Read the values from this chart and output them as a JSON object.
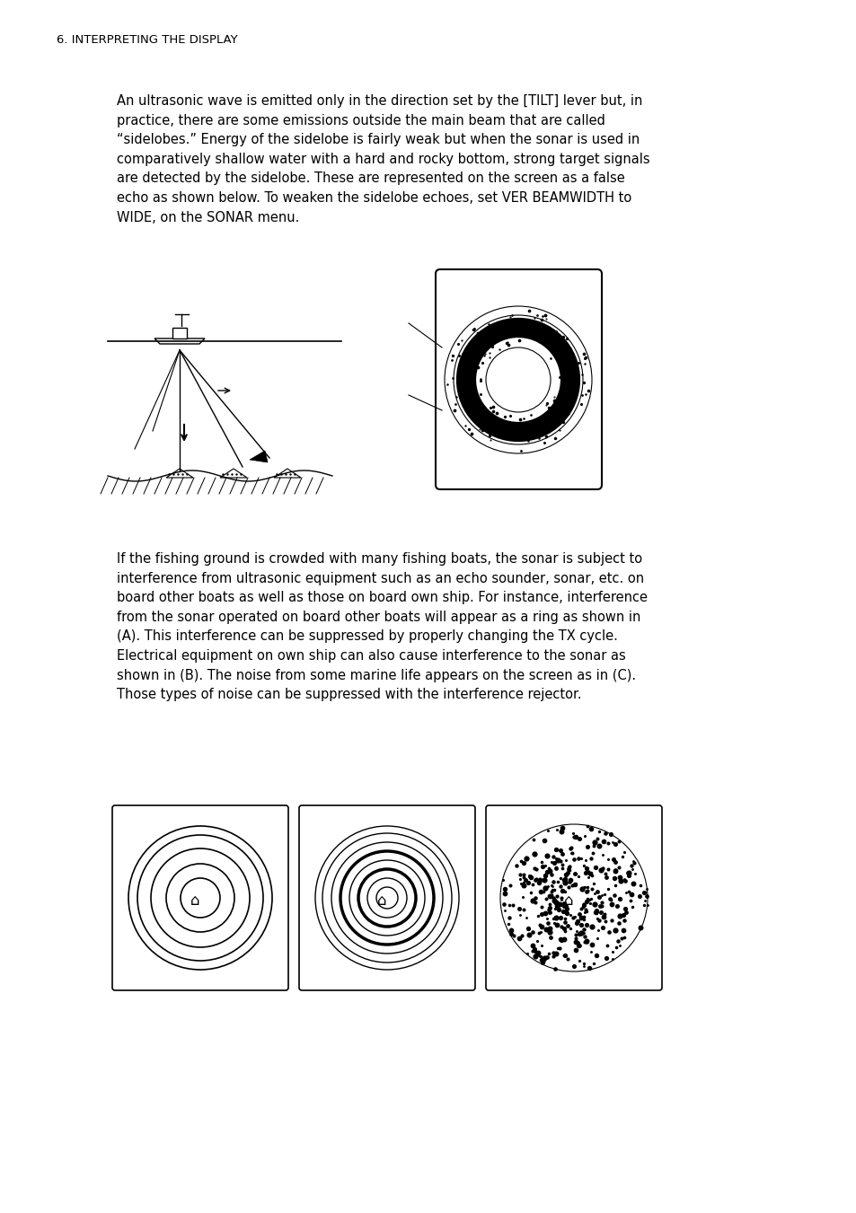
{
  "header": "6. INTERPRETING THE DISPLAY",
  "para1": "An ultrasonic wave is emitted only in the direction set by the [TILT] lever but, in\npractice, there are some emissions outside the main beam that are called\n“sidelobes.” Energy of the sidelobe is fairly weak but when the sonar is used in\ncomparatively shallow water with a hard and rocky bottom, strong target signals\nare detected by the sidelobe. These are represented on the screen as a false\necho as shown below. To weaken the sidelobe echoes, set VER BEAMWIDTH to\nWIDE, on the SONAR menu.",
  "para2": "If the fishing ground is crowded with many fishing boats, the sonar is subject to\ninterference from ultrasonic equipment such as an echo sounder, sonar, etc. on\nboard other boats as well as those on board own ship. For instance, interference\nfrom the sonar operated on board other boats will appear as a ring as shown in\n(A). This interference can be suppressed by properly changing the TX cycle.\nElectrical equipment on own ship can also cause interference to the sonar as\nshown in (B). The noise from some marine life appears on the screen as in (C).\nThose types of noise can be suppressed with the interference rejector.",
  "bg_color": "#ffffff",
  "text_color": "#000000"
}
